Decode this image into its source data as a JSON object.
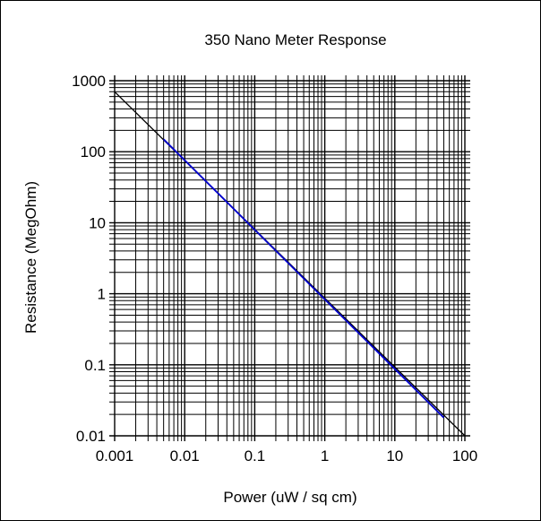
{
  "chart_data": {
    "type": "line",
    "title": "350 Nano Meter Response",
    "xlabel": "Power (uW / sq cm)",
    "ylabel": "Resistance (MegOhm)",
    "x_scale": "log",
    "y_scale": "log",
    "xlim": [
      0.001,
      100
    ],
    "ylim": [
      0.01,
      1000
    ],
    "x_ticks": [
      0.001,
      0.01,
      0.1,
      1,
      10,
      100
    ],
    "x_tick_labels": [
      "0.001",
      "0.01",
      "0.1",
      "1",
      "10",
      "100"
    ],
    "y_ticks": [
      0.01,
      0.1,
      1,
      10,
      100,
      1000
    ],
    "y_tick_labels": [
      "0.01",
      "0.1",
      "1",
      "10",
      "100",
      "1000"
    ],
    "grid": "major and minor (log)",
    "series": [
      {
        "color": "#000000",
        "x": [
          0.001,
          100
        ],
        "y": [
          700,
          0.01
        ]
      },
      {
        "color": "#0000cc",
        "x": [
          0.005,
          50
        ],
        "y": [
          150,
          0.018
        ]
      }
    ]
  }
}
